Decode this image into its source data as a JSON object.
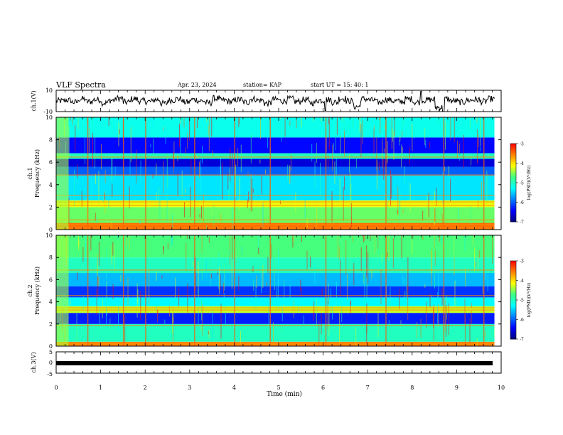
{
  "header": {
    "title": "VLF Spectra",
    "date": "Apr. 23, 2024",
    "station": "station= KAP",
    "start_time": "start UT =  15: 40: 1"
  },
  "chart_data": [
    {
      "type": "line",
      "panel": "waveform-ch1",
      "ylabel": "ch.1(V)",
      "ylim": [
        -10,
        10
      ],
      "yticks": [
        "10",
        "-10"
      ],
      "xlim": [
        0,
        9.85
      ],
      "description_series": "ch.1 voltage waveform",
      "samples_note": "approximate envelope",
      "values": [
        0,
        1,
        -2,
        3,
        -1,
        2,
        -3,
        1,
        4,
        -2,
        3,
        0,
        -1,
        2,
        -4,
        1,
        3,
        -2,
        2,
        0,
        -3,
        4,
        1,
        -1,
        2,
        -2,
        3,
        1,
        -4,
        2,
        0,
        3,
        -1,
        2,
        -3,
        1,
        2,
        -2,
        4,
        0,
        -9,
        3,
        1,
        -2,
        2,
        0,
        -1,
        3,
        -2,
        1,
        2,
        -10,
        3,
        0,
        -2,
        1,
        2,
        -1,
        3,
        0
      ]
    },
    {
      "type": "heatmap",
      "panel": "spectrogram-ch1",
      "ylabel": "ch.1\nFrequency (kHz)",
      "ylim": [
        0,
        10
      ],
      "yticks": [
        "0",
        "2",
        "4",
        "6",
        "8",
        "10"
      ],
      "xlim": [
        0,
        10
      ],
      "colorbar": {
        "label": "log(PSD)(V²/Hz)",
        "range": [
          -7,
          -3
        ],
        "ticks": [
          "-3",
          "-4",
          "-5",
          "-6",
          "-7"
        ]
      },
      "bands": [
        {
          "kHz": [
            0,
            0.6
          ],
          "log_psd": -3.5
        },
        {
          "kHz": [
            0.6,
            2.0
          ],
          "log_psd": -4.6
        },
        {
          "kHz": [
            2.0,
            2.6
          ],
          "log_psd": -4.2
        },
        {
          "kHz": [
            2.6,
            4.8
          ],
          "log_psd": -5.4
        },
        {
          "kHz": [
            4.8,
            5.6
          ],
          "log_psd": -6.0
        },
        {
          "kHz": [
            5.6,
            6.3
          ],
          "log_psd": -6.6
        },
        {
          "kHz": [
            6.3,
            6.8
          ],
          "log_psd": -5.0
        },
        {
          "kHz": [
            6.8,
            8.2
          ],
          "log_psd": -6.4
        },
        {
          "kHz": [
            8.2,
            10.0
          ],
          "log_psd": -5.2
        }
      ]
    },
    {
      "type": "heatmap",
      "panel": "spectrogram-ch2",
      "ylabel": "ch.2\nFrequency (kHz)",
      "ylim": [
        0,
        10
      ],
      "yticks": [
        "0",
        "2",
        "4",
        "6",
        "8",
        "10"
      ],
      "xlim": [
        0,
        10
      ],
      "colorbar": {
        "label": "log(PSD)(V²/Hz)",
        "range": [
          -7,
          -3
        ],
        "ticks": [
          "-3",
          "-4",
          "-5",
          "-6",
          "-7"
        ]
      },
      "bands": [
        {
          "kHz": [
            0,
            0.4
          ],
          "log_psd": -3.6
        },
        {
          "kHz": [
            0.4,
            2.0
          ],
          "log_psd": -5.0
        },
        {
          "kHz": [
            2.0,
            3.0
          ],
          "log_psd": -6.3
        },
        {
          "kHz": [
            3.0,
            3.6
          ],
          "log_psd": -4.3
        },
        {
          "kHz": [
            3.6,
            4.4
          ],
          "log_psd": -5.3
        },
        {
          "kHz": [
            4.4,
            5.4
          ],
          "log_psd": -6.2
        },
        {
          "kHz": [
            5.4,
            6.6
          ],
          "log_psd": -5.6
        },
        {
          "kHz": [
            6.6,
            8.0
          ],
          "log_psd": -5.0
        },
        {
          "kHz": [
            8.0,
            10.0
          ],
          "log_psd": -4.7
        }
      ]
    },
    {
      "type": "line",
      "panel": "waveform-ch3",
      "ylabel": "ch.3(V)",
      "ylim": [
        -5,
        5
      ],
      "yticks": [
        "5",
        "0",
        "-5"
      ],
      "xlim": [
        0,
        9.85
      ],
      "values": [
        -1,
        -1
      ]
    }
  ],
  "x_axis": {
    "label": "Time (min)",
    "ticks": [
      "0",
      "1",
      "2",
      "3",
      "4",
      "5",
      "6",
      "7",
      "8",
      "9",
      "10"
    ]
  },
  "colors": {
    "colormap": [
      "#00007f",
      "#0000ff",
      "#0080ff",
      "#00ffff",
      "#40ff80",
      "#ffff00",
      "#ff8000",
      "#ff0000",
      "#ffffff"
    ]
  }
}
